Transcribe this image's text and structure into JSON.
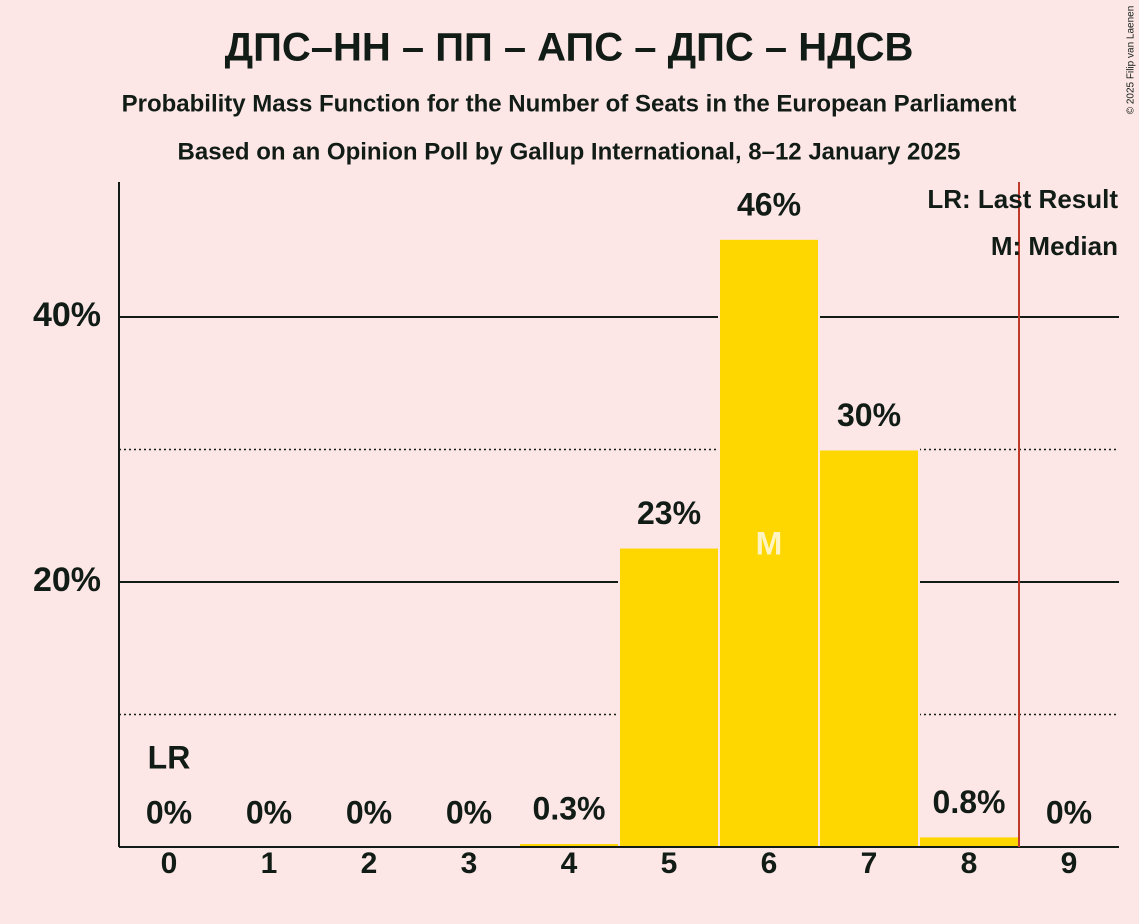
{
  "chart_data": {
    "type": "bar",
    "title": "ДПС–НН – ПП – АПС – ДПС – НДСВ",
    "subtitle": "Probability Mass Function for the Number of Seats in the European Parliament",
    "subtitle2": "Based on an Opinion Poll by Gallup International, 8–12 January 2025",
    "copyright": "© 2025 Filip van Laenen",
    "categories": [
      "0",
      "1",
      "2",
      "3",
      "4",
      "5",
      "6",
      "7",
      "8",
      "9"
    ],
    "values": [
      0,
      0,
      0,
      0,
      0.3,
      22.6,
      45.9,
      30,
      0.8,
      0
    ],
    "value_labels": [
      "0%",
      "0%",
      "0%",
      "0%",
      "0.3%",
      "23%",
      "46%",
      "30%",
      "0.8%",
      "0%"
    ],
    "color": "#ffd700",
    "ylim": [
      0,
      50
    ],
    "yticks": [
      {
        "value": 20,
        "label": "20%"
      },
      {
        "value": 40,
        "label": "40%"
      }
    ],
    "minor_yticks": [
      10,
      30
    ],
    "grid": true,
    "markers": [
      {
        "label": "LR",
        "at": 0
      },
      {
        "label": "M",
        "at": 6
      }
    ],
    "threshold_line": {
      "at": 8.5,
      "color": "#c0392b"
    },
    "legend": [
      "LR: Last Result",
      "M: Median"
    ]
  }
}
